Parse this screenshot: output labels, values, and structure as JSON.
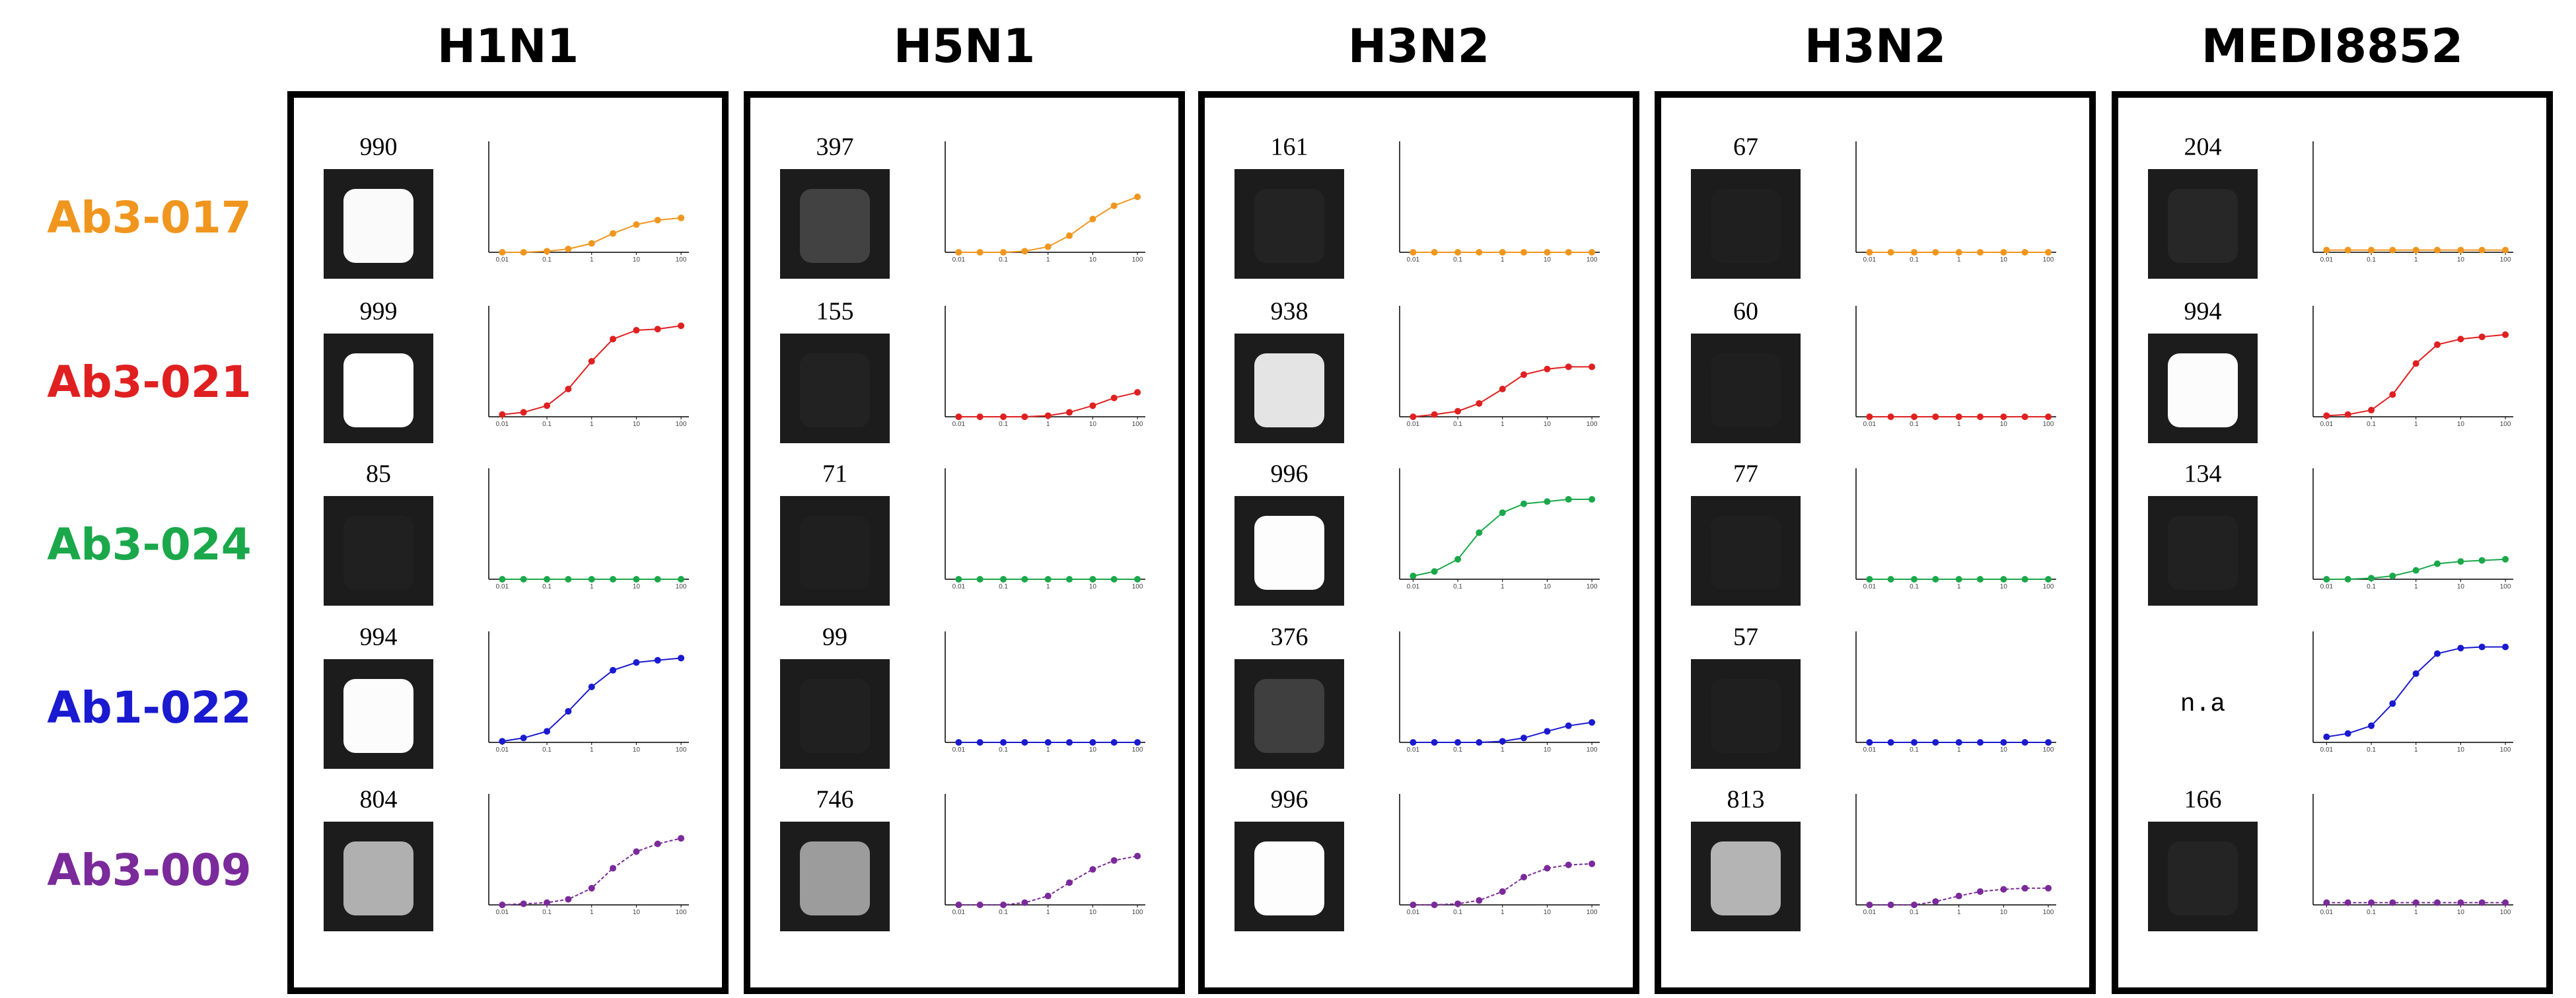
{
  "columns": [
    {
      "title": "H1N1",
      "cells": [
        {
          "score": 990,
          "curve": [
            0,
            0,
            0.01,
            0.03,
            0.08,
            0.17,
            0.25,
            0.29,
            0.31
          ]
        },
        {
          "score": 999,
          "curve": [
            0.02,
            0.04,
            0.1,
            0.25,
            0.5,
            0.7,
            0.78,
            0.79,
            0.82
          ]
        },
        {
          "score": 85,
          "curve": [
            0,
            0,
            0,
            0,
            0,
            0,
            0,
            0,
            0
          ]
        },
        {
          "score": 994,
          "curve": [
            0.01,
            0.04,
            0.1,
            0.28,
            0.5,
            0.65,
            0.72,
            0.74,
            0.76
          ]
        },
        {
          "score": 804,
          "curve": [
            0,
            0.01,
            0.02,
            0.05,
            0.15,
            0.33,
            0.48,
            0.55,
            0.6
          ]
        }
      ]
    },
    {
      "title": "H5N1",
      "cells": [
        {
          "score": 397,
          "curve": [
            0,
            0,
            0,
            0.01,
            0.05,
            0.15,
            0.3,
            0.42,
            0.5
          ]
        },
        {
          "score": 155,
          "curve": [
            0,
            0,
            0,
            0,
            0.01,
            0.04,
            0.1,
            0.17,
            0.22
          ]
        },
        {
          "score": 71,
          "curve": [
            0,
            0,
            0,
            0,
            0,
            0,
            0,
            0,
            0
          ]
        },
        {
          "score": 99,
          "curve": [
            0,
            0,
            0,
            0,
            0,
            0,
            0,
            0,
            0
          ]
        },
        {
          "score": 746,
          "curve": [
            0,
            0,
            0,
            0.02,
            0.08,
            0.2,
            0.32,
            0.4,
            0.44
          ]
        }
      ]
    },
    {
      "title": "H3N2",
      "cells": [
        {
          "score": 161,
          "curve": [
            0,
            0,
            0,
            0,
            0,
            0,
            0,
            0,
            0
          ]
        },
        {
          "score": 938,
          "curve": [
            0,
            0.02,
            0.05,
            0.12,
            0.25,
            0.38,
            0.43,
            0.45,
            0.45
          ]
        },
        {
          "score": 996,
          "curve": [
            0.03,
            0.07,
            0.18,
            0.42,
            0.6,
            0.68,
            0.7,
            0.72,
            0.72
          ]
        },
        {
          "score": 376,
          "curve": [
            0,
            0,
            0,
            0,
            0.01,
            0.04,
            0.1,
            0.15,
            0.18
          ]
        },
        {
          "score": 996,
          "curve": [
            0,
            0,
            0.01,
            0.04,
            0.12,
            0.25,
            0.33,
            0.36,
            0.37
          ]
        }
      ]
    },
    {
      "title": "H3N2",
      "cells": [
        {
          "score": 67,
          "curve": [
            0,
            0,
            0,
            0,
            0,
            0,
            0,
            0,
            0
          ]
        },
        {
          "score": 60,
          "curve": [
            0,
            0,
            0,
            0,
            0,
            0,
            0,
            0,
            0
          ]
        },
        {
          "score": 77,
          "curve": [
            0,
            0,
            0,
            0,
            0,
            0,
            0,
            0,
            0
          ]
        },
        {
          "score": 57,
          "curve": [
            0,
            0,
            0,
            0,
            0,
            0,
            0,
            0,
            0
          ]
        },
        {
          "score": 813,
          "curve": [
            0,
            0,
            0,
            0.03,
            0.08,
            0.12,
            0.14,
            0.15,
            0.15
          ]
        }
      ]
    },
    {
      "title": "MEDI8852",
      "cells": [
        {
          "score": 204,
          "curve": [
            0.02,
            0.02,
            0.02,
            0.02,
            0.02,
            0.02,
            0.02,
            0.02,
            0.02
          ]
        },
        {
          "score": 994,
          "curve": [
            0.01,
            0.02,
            0.06,
            0.2,
            0.48,
            0.65,
            0.7,
            0.72,
            0.74
          ]
        },
        {
          "score": 134,
          "curve": [
            0,
            0,
            0.01,
            0.03,
            0.08,
            0.14,
            0.16,
            0.17,
            0.18
          ]
        },
        {
          "score": "n.a",
          "curve": [
            0.05,
            0.08,
            0.15,
            0.35,
            0.62,
            0.8,
            0.85,
            0.86,
            0.86
          ]
        },
        {
          "score": 166,
          "curve": [
            0.02,
            0.02,
            0.02,
            0.02,
            0.02,
            0.02,
            0.02,
            0.02,
            0.02
          ]
        }
      ]
    }
  ],
  "rows": [
    "Ab3-017",
    "Ab3-021",
    "Ab3-024",
    "Ab1-022",
    "Ab3-009"
  ],
  "row_colors": [
    "#f0961e",
    "#e02020",
    "#1aa84a",
    "#1a1ad0",
    "#7a2a9a"
  ],
  "x": [
    0.01,
    0.03,
    0.1,
    0.3,
    1,
    3,
    10,
    30,
    100
  ],
  "xlim": [
    0.005,
    150
  ],
  "xticks": [
    0.01,
    0.1,
    1,
    10,
    100
  ],
  "ylim": [
    0,
    1
  ]
}
